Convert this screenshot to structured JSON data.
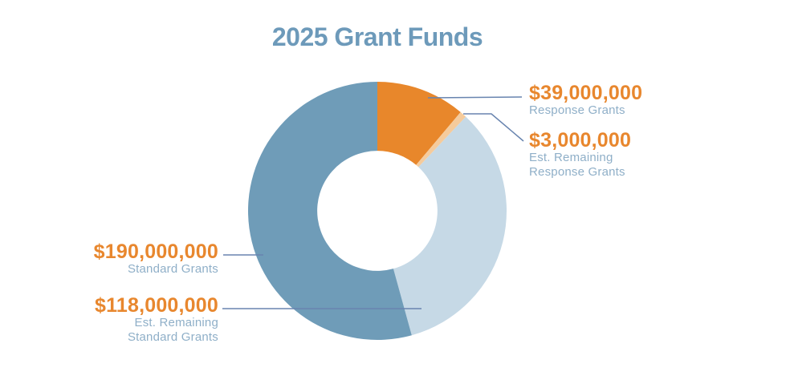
{
  "title": "2025 Grant Funds",
  "colors": {
    "background": "#ffffff",
    "title_text": "#6d9aba",
    "value_text": "#e8872e",
    "caption_text": "#8fafc8",
    "leader_line": "#6884af"
  },
  "chart_data": {
    "type": "pie",
    "subtype": "donut",
    "title": "2025 Grant Funds",
    "total_value": 350000000,
    "units": "USD",
    "start_angle_deg": 0,
    "direction": "clockwise",
    "inner_radius_ratio": 0.465,
    "grid": false,
    "legend_position": "callouts",
    "segments": [
      {
        "id": "response-grants",
        "label": "Response Grants",
        "value": 39000000,
        "value_label": "$39,000,000",
        "color": "#e8872b"
      },
      {
        "id": "est-remaining-response-grants",
        "label": "Est. Remaining Response Grants",
        "value": 3000000,
        "value_label": "$3,000,000",
        "color": "#f5cb9c"
      },
      {
        "id": "est-remaining-standard-grants",
        "label": "Est. Remaining Standard Grants",
        "value": 118000000,
        "value_label": "$118,000,000",
        "color": "#c6d9e6"
      },
      {
        "id": "standard-grants",
        "label": "Standard Grants",
        "value": 190000000,
        "value_label": "$190,000,000",
        "color": "#6f9cb8"
      }
    ]
  },
  "callouts": [
    {
      "side": "right",
      "value": "$39,000,000",
      "lines": [
        "Response Grants"
      ]
    },
    {
      "side": "right",
      "value": "$3,000,000",
      "lines": [
        "Est. Remaining",
        "Response Grants"
      ]
    },
    {
      "side": "left",
      "value": "$190,000,000",
      "lines": [
        "Standard Grants"
      ]
    },
    {
      "side": "left",
      "value": "$118,000,000",
      "lines": [
        "Est. Remaining",
        "Standard Grants"
      ]
    }
  ]
}
